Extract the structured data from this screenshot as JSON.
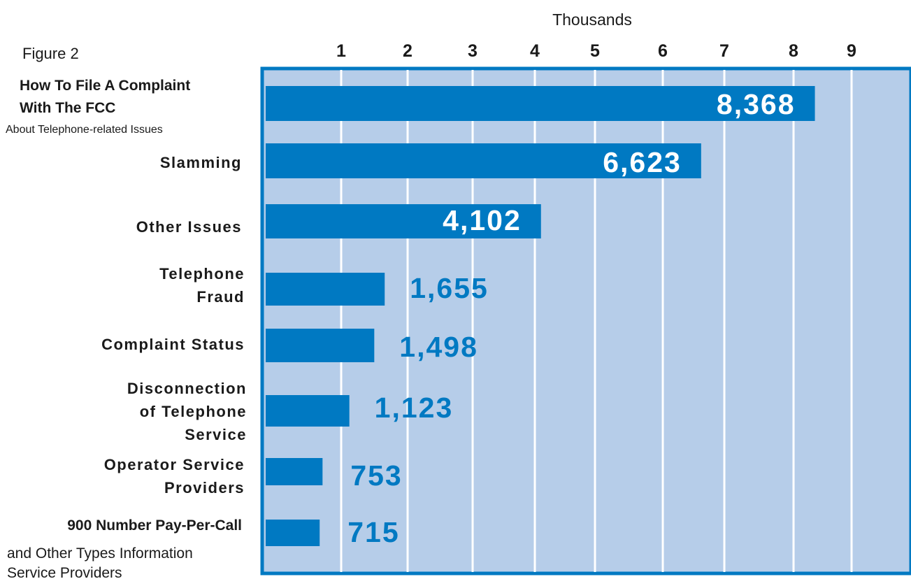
{
  "figure_label": "Figure 2",
  "colors": {
    "plot_background": "#b6cde9",
    "bar": "#0079c2",
    "frame": "#0079c2",
    "gridline": "#ffffff",
    "label_inside": "#ffffff",
    "label_outside": "#0079c2"
  },
  "chart_data": {
    "type": "bar",
    "orientation": "horizontal",
    "xlabel": "Thousands",
    "xlabel_position": "top",
    "x_ticks": [
      "1",
      "2",
      "3",
      "4",
      "5",
      "6",
      "7",
      "8",
      "9"
    ],
    "xlim": [
      0,
      10
    ],
    "grid": true,
    "categories": [
      {
        "lines": [
          "How To File A Complaint",
          "With The  FCC"
        ],
        "sub": [
          "About Telephone-related Issues"
        ],
        "value": 8368,
        "label": "8,368"
      },
      {
        "lines": [
          "Slamming"
        ],
        "sub": [],
        "value": 6623,
        "label": "6,623"
      },
      {
        "lines": [
          "Other Issues"
        ],
        "sub": [],
        "value": 4102,
        "label": "4,102"
      },
      {
        "lines": [
          "Telephone",
          "Fraud"
        ],
        "sub": [],
        "value": 1655,
        "label": "1,655"
      },
      {
        "lines": [
          "Complaint Status"
        ],
        "sub": [],
        "value": 1498,
        "label": "1,498"
      },
      {
        "lines": [
          "Disconnection",
          "of Telephone",
          "Service"
        ],
        "sub": [],
        "value": 1123,
        "label": "1,123"
      },
      {
        "lines": [
          "Operator Service",
          "Providers"
        ],
        "sub": [],
        "value": 753,
        "label": "753"
      },
      {
        "lines": [
          "900 Number Pay-Per-Call"
        ],
        "sub": [
          "and Other Types Information",
          "Service Providers"
        ],
        "value": 715,
        "label": "715"
      }
    ]
  }
}
